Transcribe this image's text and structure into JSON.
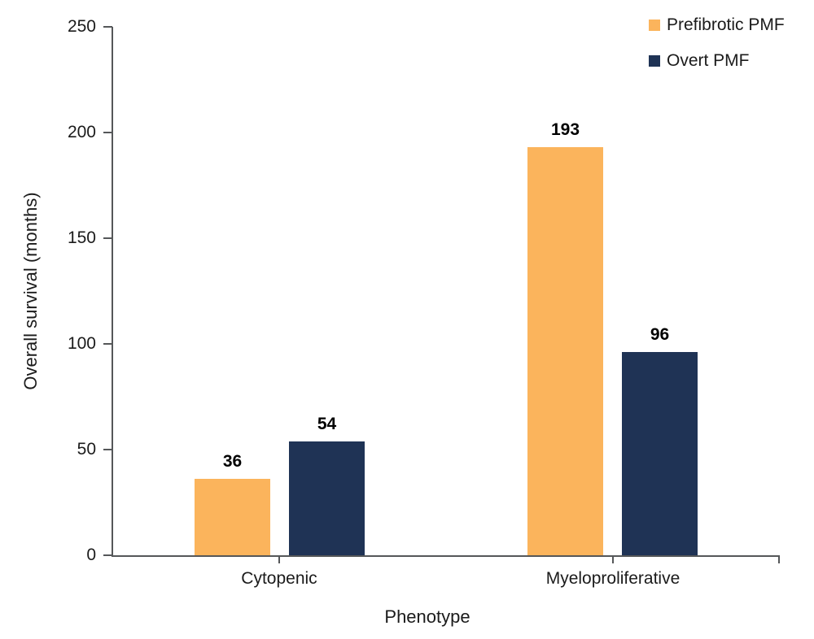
{
  "chart_data": {
    "type": "bar",
    "title": "",
    "xlabel": "Phenotype",
    "ylabel": "Overall survival (months)",
    "categories": [
      "Cytopenic",
      "Myeloproliferative"
    ],
    "series": [
      {
        "name": "Prefibrotic PMF",
        "color": "#FBB45C",
        "values": [
          36,
          193
        ]
      },
      {
        "name": "Overt PMF",
        "color": "#1F3355",
        "values": [
          54,
          96
        ]
      }
    ],
    "ylim": [
      0,
      250
    ],
    "yticks": [
      0,
      50,
      100,
      150,
      200,
      250
    ],
    "grid": false,
    "legend_position": "top-right",
    "colors": {
      "axis": "#555759",
      "text": "#1b1b1b",
      "value_label": "#000000",
      "background": "#ffffff"
    }
  }
}
